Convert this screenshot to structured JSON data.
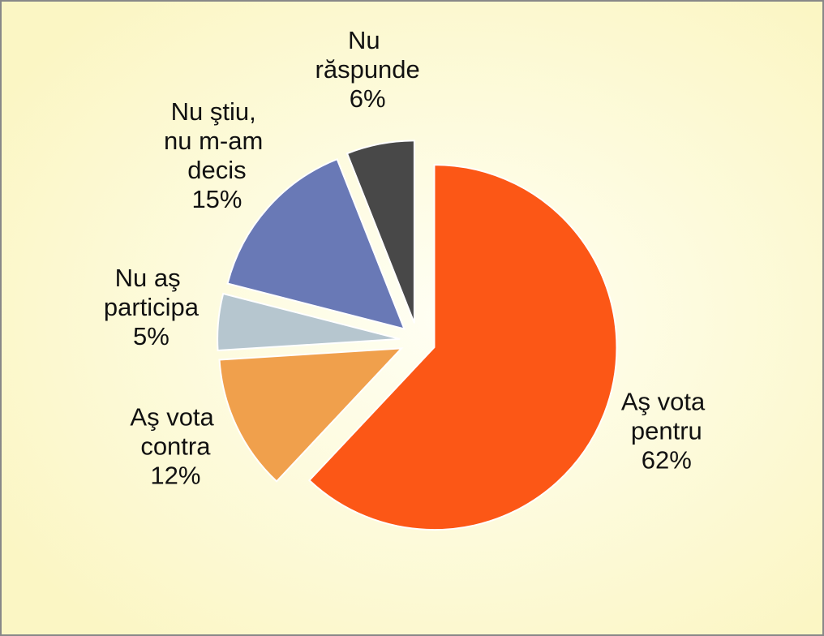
{
  "chart_data": {
    "type": "pie",
    "categories": [
      "Aş vota pentru",
      "Aş vota contra",
      "Nu aş participa",
      "Nu ştiu, nu m-am decis",
      "Nu răspunde"
    ],
    "values": [
      62,
      12,
      5,
      15,
      6
    ],
    "value_labels": [
      "62%",
      "12%",
      "5%",
      "15%",
      "6%"
    ],
    "colors": [
      "#fc5716",
      "#f0a04c",
      "#b6c6cf",
      "#6979b6",
      "#484848"
    ]
  }
}
